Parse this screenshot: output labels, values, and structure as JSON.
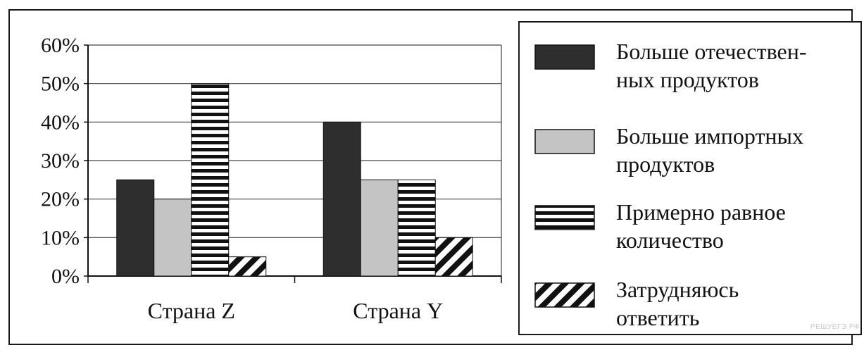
{
  "chart_data": {
    "type": "bar",
    "categories": [
      "Страна Z",
      "Страна Y"
    ],
    "series": [
      {
        "name": "Больше отечествен-ных продуктов",
        "legend_lines": [
          "Больше отечествен-",
          "ных продуктов"
        ],
        "values": [
          25,
          40
        ],
        "pattern": "solid-dark",
        "color": "#2e2e2e"
      },
      {
        "name": "Больше импортных продуктов",
        "legend_lines": [
          "Больше импортных",
          "продуктов"
        ],
        "values": [
          20,
          25
        ],
        "pattern": "solid-light",
        "color": "#c4c4c4"
      },
      {
        "name": "Примерно равное количество",
        "legend_lines": [
          "Примерно равное",
          "количество"
        ],
        "values": [
          50,
          25
        ],
        "pattern": "horizontal-stripes",
        "color": "#111111"
      },
      {
        "name": "Затрудняюсь ответить",
        "legend_lines": [
          "Затрудняюсь",
          "ответить"
        ],
        "values": [
          5,
          10
        ],
        "pattern": "diagonal-stripes",
        "color": "#111111"
      }
    ],
    "ylim": [
      0,
      60
    ],
    "yticks": [
      0,
      10,
      20,
      30,
      40,
      50,
      60
    ],
    "ytick_labels": [
      "0%",
      "10%",
      "20%",
      "30%",
      "40%",
      "50%",
      "60%"
    ],
    "grid": true,
    "legend_position": "right",
    "title": "",
    "xlabel": "",
    "ylabel": ""
  },
  "watermark": "РЕШУЕГЭ.РФ"
}
